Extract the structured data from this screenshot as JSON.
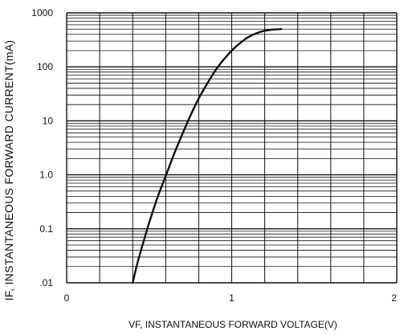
{
  "chart_data": {
    "type": "line",
    "title": "",
    "xlabel": "VF, INSTANTANEOUS FORWARD VOLTAGE(V)",
    "ylabel": "IF, INSTANTANEOUS FORWARD CURRENT(mA)",
    "xlim": [
      0,
      2
    ],
    "ylim": [
      0.01,
      1000
    ],
    "y_scale": "log",
    "grid": true,
    "x_ticks": [
      {
        "value": 0,
        "label": "0"
      },
      {
        "value": 1,
        "label": "1"
      },
      {
        "value": 2,
        "label": "2"
      }
    ],
    "y_ticks": [
      {
        "value": 1000,
        "label": "1000"
      },
      {
        "value": 100,
        "label": "100"
      },
      {
        "value": 10,
        "label": "10"
      },
      {
        "value": 1,
        "label": "1.0"
      },
      {
        "value": 0.1,
        "label": "0.1"
      },
      {
        "value": 0.01,
        "label": ".01"
      }
    ],
    "series": [
      {
        "color": "#111111",
        "x": [
          0.4,
          0.43,
          0.47,
          0.5,
          0.55,
          0.6,
          0.65,
          0.7,
          0.75,
          0.8,
          0.85,
          0.9,
          0.95,
          1.0,
          1.05,
          1.1,
          1.15,
          1.2,
          1.25,
          1.3
        ],
        "y": [
          0.01,
          0.024,
          0.064,
          0.13,
          0.38,
          0.95,
          2.4,
          5.6,
          12.5,
          26,
          48,
          85,
          135,
          200,
          275,
          355,
          420,
          465,
          490,
          500
        ]
      }
    ]
  }
}
